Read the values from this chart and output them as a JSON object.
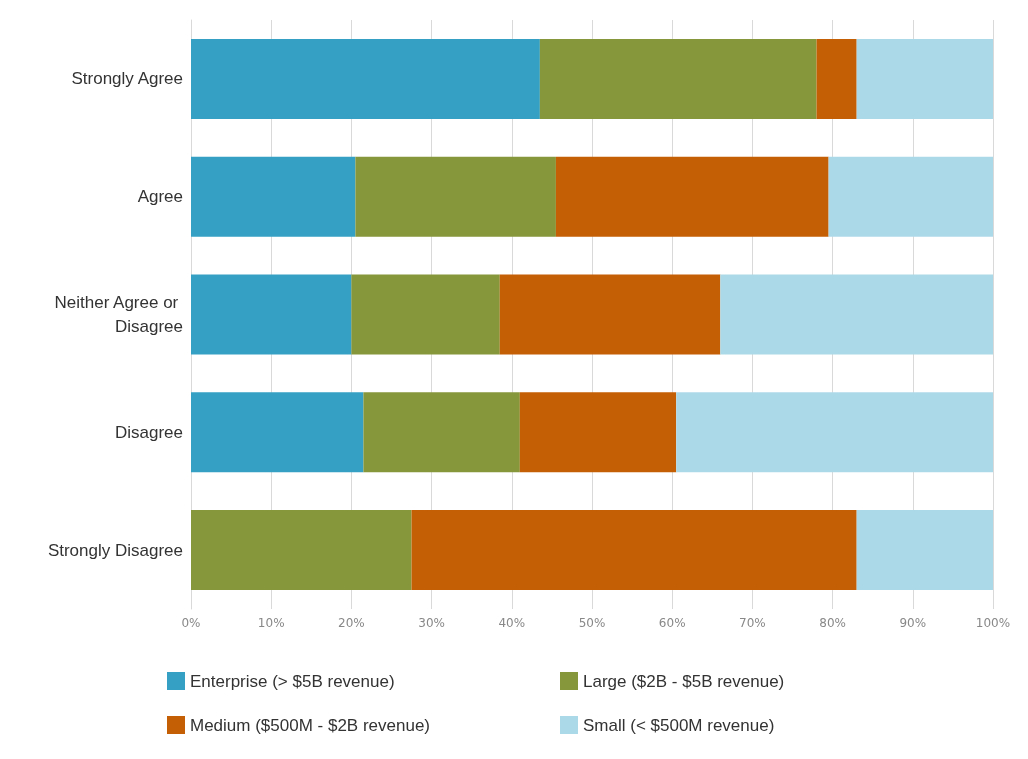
{
  "chart_data": {
    "type": "bar",
    "orientation": "horizontal",
    "stacked": true,
    "categories": [
      "Strongly Agree",
      "Agree",
      "Neither Agree or Disagree",
      "Disagree",
      "Strongly Disagree"
    ],
    "series": [
      {
        "name": "Enterprise (> $5B revenue)",
        "color": "#35a0c3",
        "values": [
          43.5,
          20.5,
          20,
          21.5,
          0
        ]
      },
      {
        "name": "Large ($2B - $5B revenue)",
        "color": "#86963a",
        "values": [
          34.5,
          25,
          18.5,
          19.5,
          27.5
        ]
      },
      {
        "name": "Medium ($500M - $2B revenue)",
        "color": "#c55f05",
        "values": [
          5,
          34,
          27.5,
          19.5,
          55.5
        ]
      },
      {
        "name": "Small (< $500M revenue)",
        "color": "#acd9e8",
        "values": [
          17,
          20.5,
          34,
          39.5,
          17
        ]
      }
    ],
    "xlim": [
      0,
      100
    ],
    "xticks": [
      {
        "value": 0,
        "label": "0%"
      },
      {
        "value": 10,
        "label": "10%"
      },
      {
        "value": 20,
        "label": "20%"
      },
      {
        "value": 30,
        "label": "30%"
      },
      {
        "value": 40,
        "label": "40%"
      },
      {
        "value": 50,
        "label": "50%"
      },
      {
        "value": 60,
        "label": "60%"
      },
      {
        "value": 70,
        "label": "70%"
      },
      {
        "value": 80,
        "label": "80%"
      },
      {
        "value": 90,
        "label": "90%"
      },
      {
        "value": 100,
        "label": "100%"
      }
    ],
    "grid": "x",
    "legend": "bottom"
  }
}
